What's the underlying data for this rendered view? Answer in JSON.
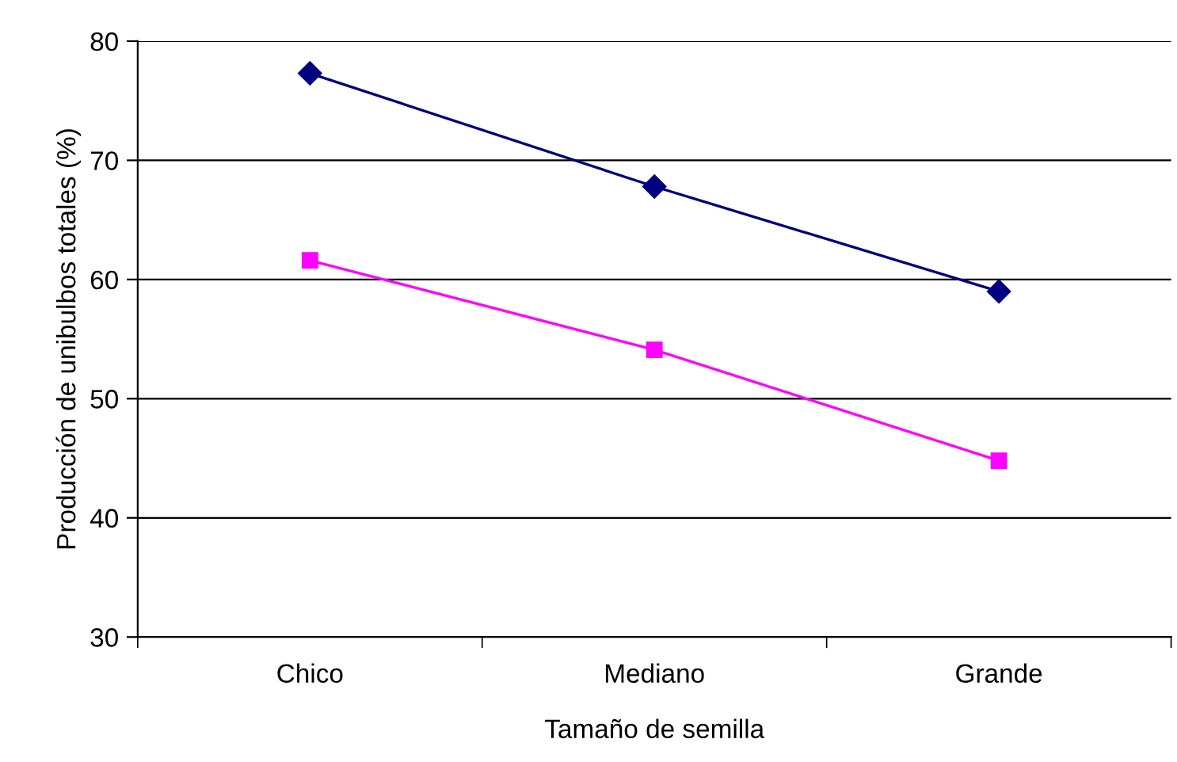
{
  "chart_data": {
    "type": "line",
    "xlabel": "Tamaño de semilla",
    "ylabel": "Producción de unibulbos totales (%)",
    "categories": [
      "Chico",
      "Mediano",
      "Grande"
    ],
    "series": [
      {
        "color": "#000080",
        "marker": "diamond",
        "values": [
          77.3,
          67.8,
          59.0
        ]
      },
      {
        "color": "#ff00ff",
        "marker": "square",
        "values": [
          61.6,
          54.1,
          44.8
        ]
      }
    ],
    "ylim": [
      30,
      80
    ],
    "yticks": [
      30,
      40,
      50,
      60,
      70,
      80
    ],
    "grid": "y",
    "line_style": "solid",
    "legend": false
  }
}
